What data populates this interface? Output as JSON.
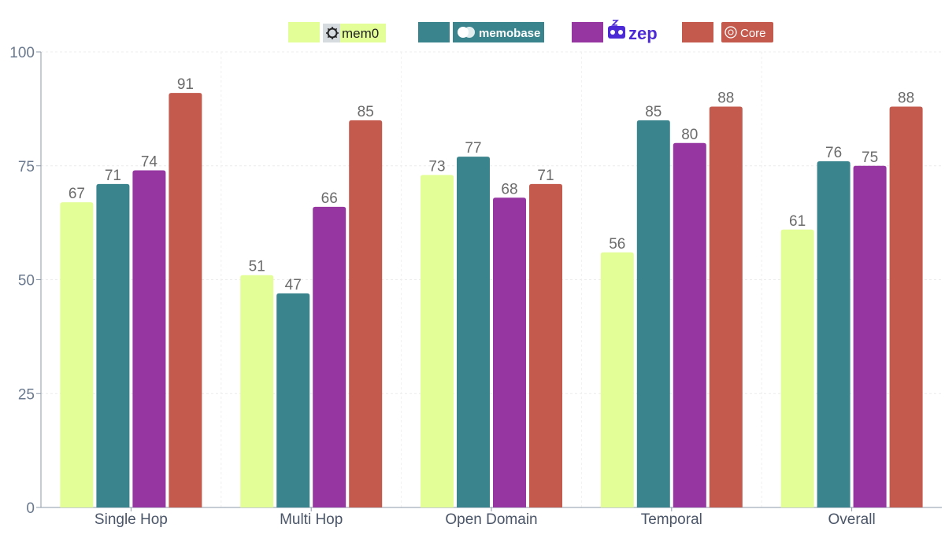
{
  "chart_data": {
    "type": "bar",
    "title": "",
    "xlabel": "",
    "ylabel": "",
    "ylim": [
      0,
      100
    ],
    "yticks": [
      0,
      25,
      50,
      75,
      100
    ],
    "grid": true,
    "legend_position": "top",
    "categories": [
      "Single Hop",
      "Multi Hop",
      "Open Domain",
      "Temporal",
      "Overall"
    ],
    "series": [
      {
        "name": "mem0",
        "color": "#e3fd97",
        "icon": "mem0-logo-icon",
        "values": [
          67,
          51,
          73,
          56,
          61
        ]
      },
      {
        "name": "memobase",
        "color": "#3a848d",
        "icon": "memobase-logo-icon",
        "values": [
          71,
          47,
          77,
          85,
          76
        ]
      },
      {
        "name": "zep",
        "color": "#9637a1",
        "icon": "zep-logo-icon",
        "values": [
          74,
          66,
          68,
          80,
          75
        ]
      },
      {
        "name": "Core",
        "color": "#c35a4d",
        "icon": "core-logo-icon",
        "values": [
          91,
          85,
          71,
          88,
          88
        ]
      }
    ]
  }
}
